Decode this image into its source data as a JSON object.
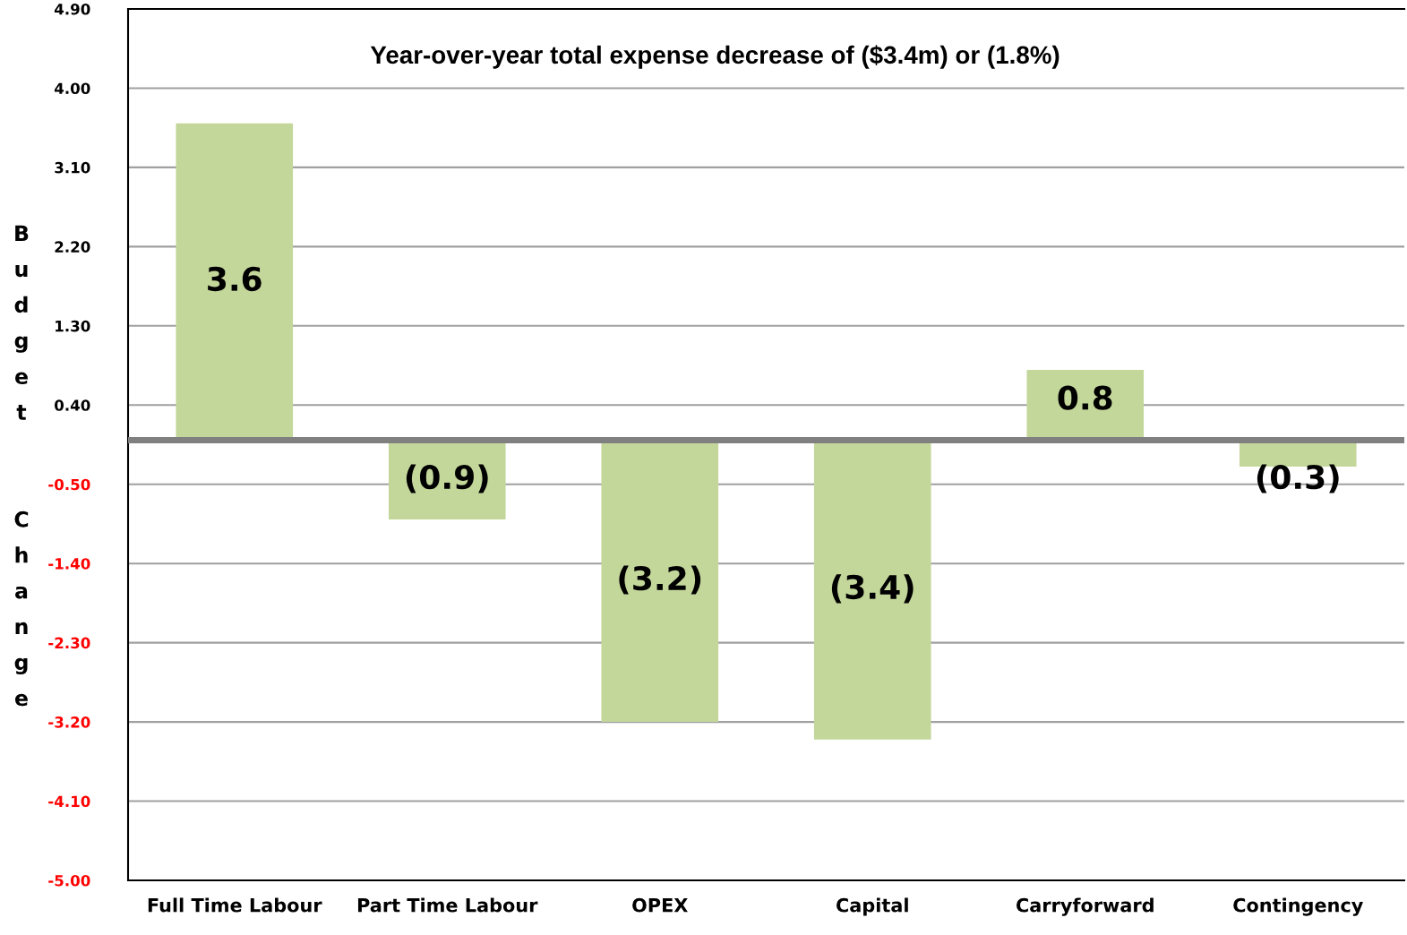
{
  "chart_data": {
    "type": "bar",
    "title": "Year-over-year total expense decrease of ($3.4m) or (1.8%)",
    "ylabel": "Budget Change",
    "categories": [
      "Full Time Labour",
      "Part Time Labour",
      "OPEX",
      "Capital",
      "Carryforward",
      "Contingency"
    ],
    "values": [
      3.6,
      -0.9,
      -3.2,
      -3.4,
      0.8,
      -0.3
    ],
    "value_labels": [
      "3.6",
      "(0.9)",
      "(3.2)",
      "(3.4)",
      "0.8",
      "(0.3)"
    ],
    "color": "#c4d79b",
    "ylim": [
      -5.0,
      4.9
    ],
    "yticks": [
      {
        "value": -5.0,
        "label": "-5.00"
      },
      {
        "value": -4.1,
        "label": "-4.10"
      },
      {
        "value": -3.2,
        "label": "-3.20"
      },
      {
        "value": -2.3,
        "label": "-2.30"
      },
      {
        "value": -1.4,
        "label": "-1.40"
      },
      {
        "value": -0.5,
        "label": "-0.50"
      },
      {
        "value": 0.4,
        "label": "0.40"
      },
      {
        "value": 1.3,
        "label": "1.30"
      },
      {
        "value": 2.2,
        "label": "2.20"
      },
      {
        "value": 3.1,
        "label": "3.10"
      },
      {
        "value": 4.0,
        "label": "4.00"
      },
      {
        "value": 4.9,
        "label": "4.90"
      }
    ],
    "ref_lines": [
      {
        "axis": "y",
        "value": 0,
        "color": "#808080"
      }
    ],
    "grid": "y",
    "legend": false
  }
}
